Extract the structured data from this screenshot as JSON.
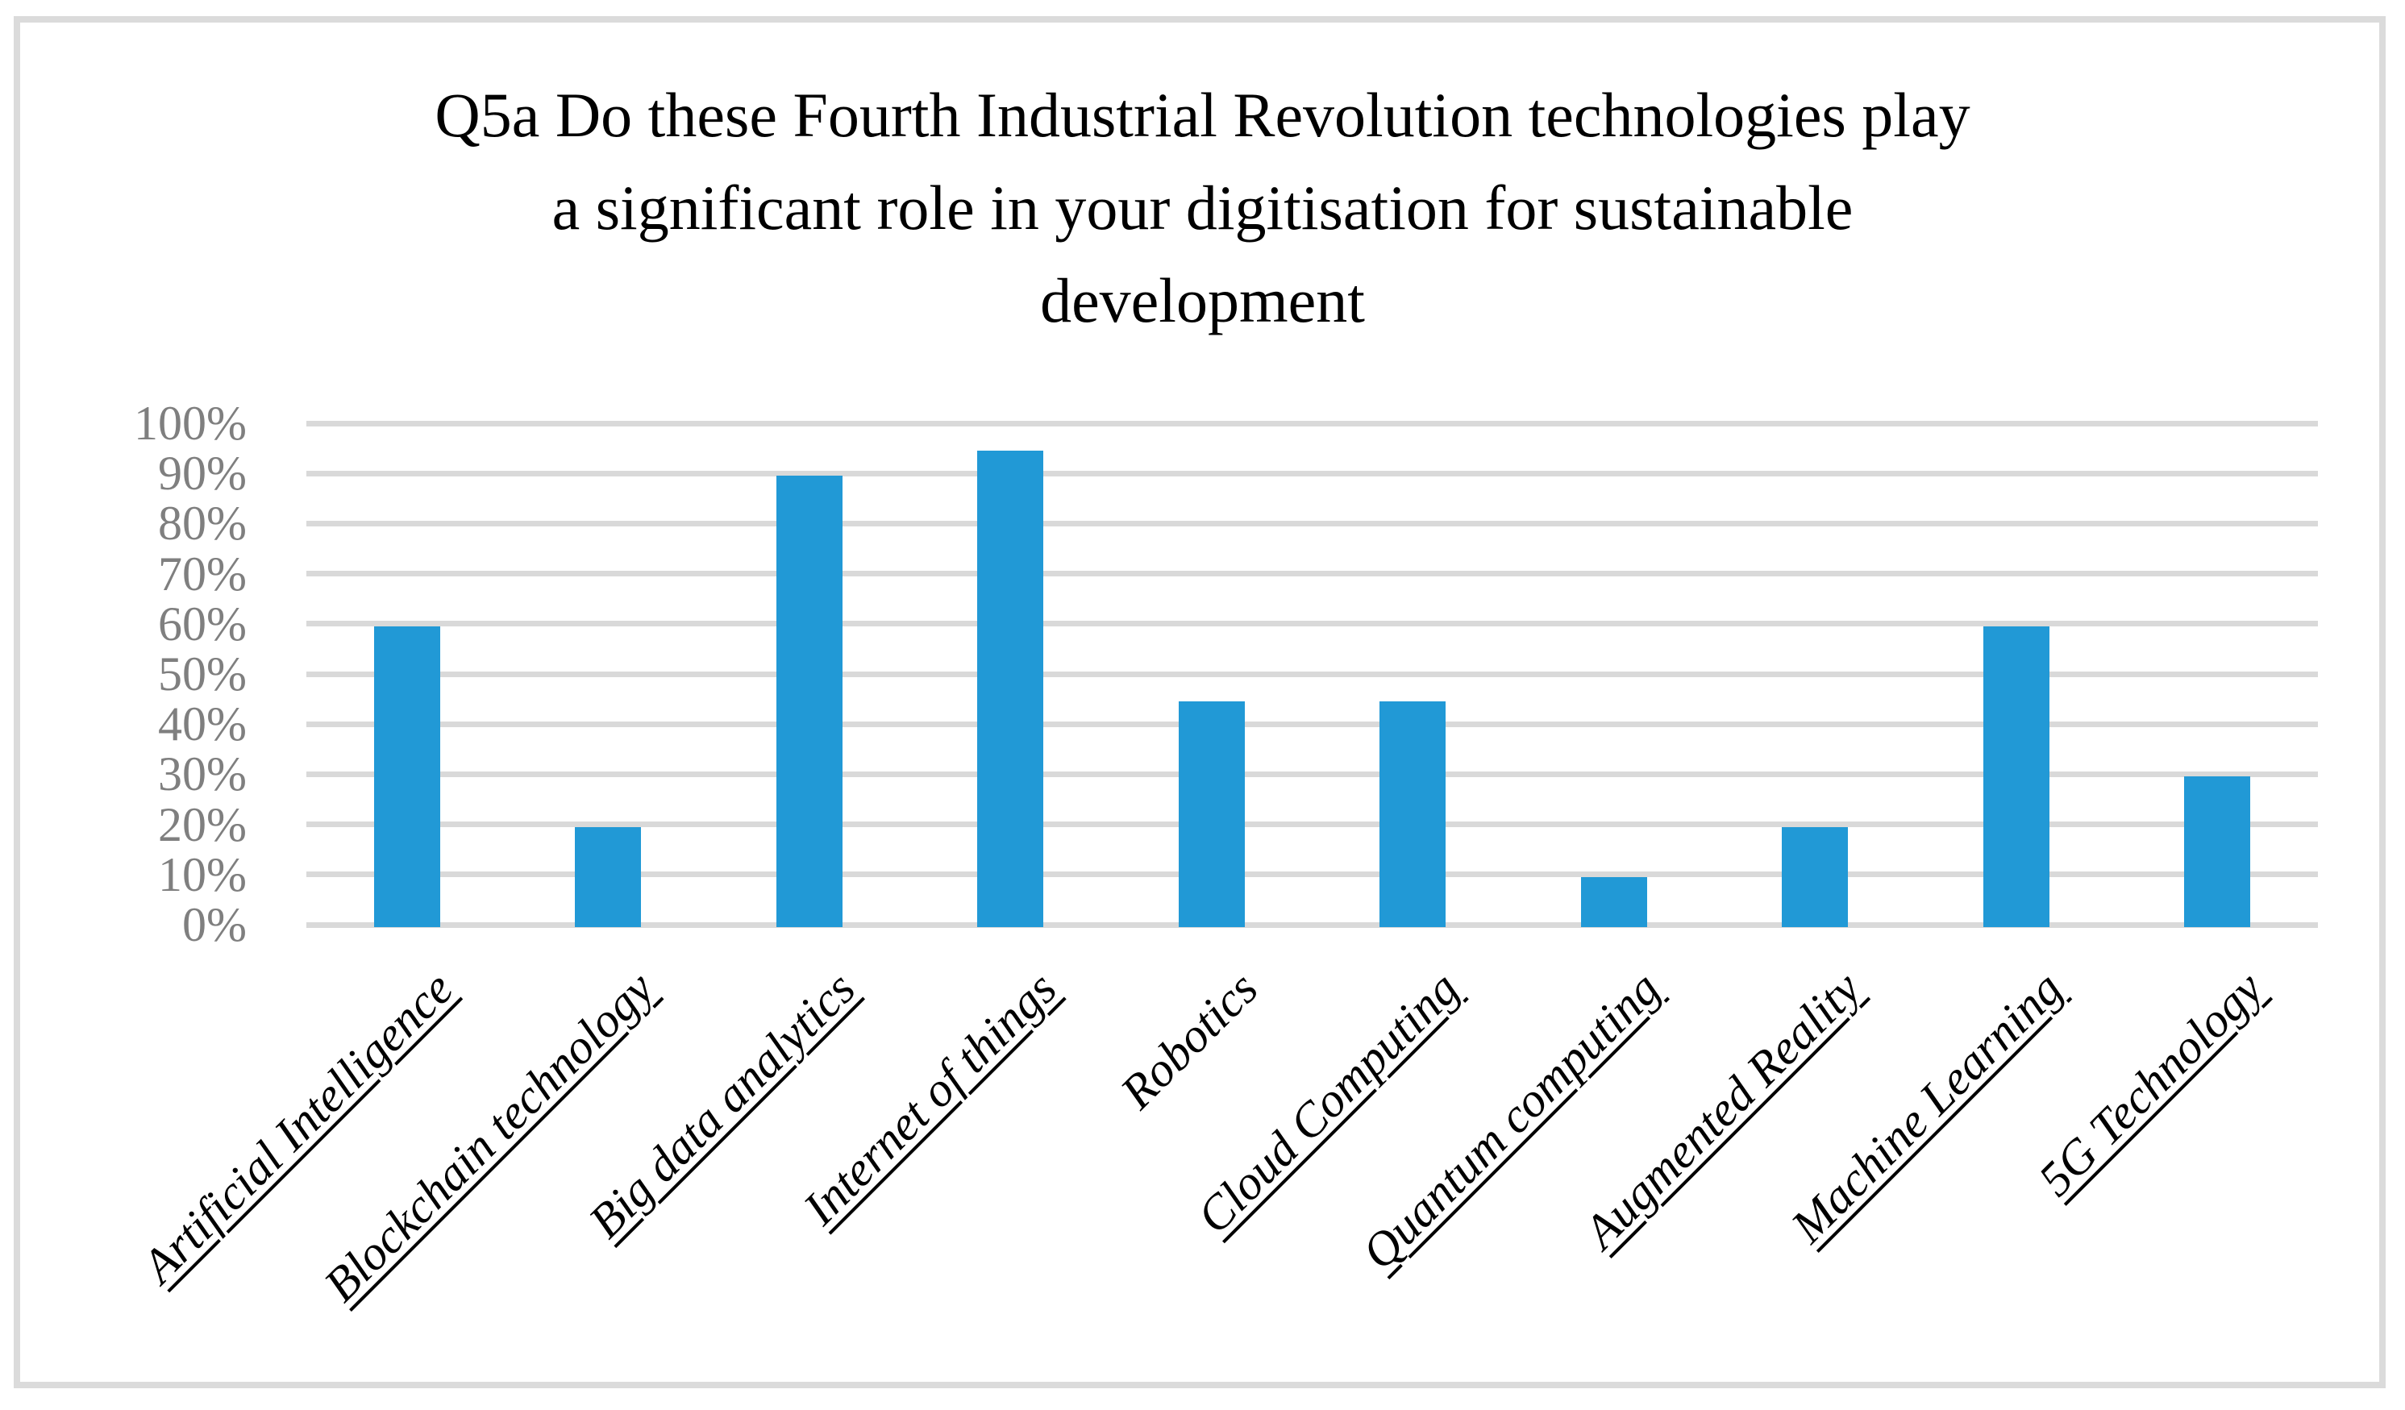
{
  "chart_data": {
    "type": "bar",
    "title": "Q5a Do these Fourth Industrial Revolution technologies play a significant role in your digitisation for sustainable development",
    "title_lines": [
      "Q5a Do these Fourth Industrial Revolution technologies play",
      "a significant role in your digitisation for sustainable",
      "development"
    ],
    "categories": [
      "Artificial Intelligence",
      "Blockchain technology",
      "Big data analytics",
      "Internet of things",
      "Robotics",
      "Cloud Computing",
      "Quantum computing",
      "Augmented Reality",
      "Machine Learning",
      "5G Technology"
    ],
    "values": [
      60,
      20,
      90,
      95,
      45,
      45,
      10,
      20,
      60,
      30
    ],
    "category_label_underlined": [
      true,
      true,
      true,
      true,
      false,
      true,
      true,
      true,
      true,
      true
    ],
    "xlabel": "",
    "ylabel": "",
    "ylim": [
      0,
      100
    ],
    "ytick_step": 10,
    "ytick_labels": [
      "0%",
      "10%",
      "20%",
      "30%",
      "40%",
      "50%",
      "60%",
      "70%",
      "80%",
      "90%",
      "100%"
    ],
    "grid": true,
    "legend_position": "none",
    "colors": {
      "bar": "#2199D6",
      "gridline": "#D9D9D9",
      "tick_label": "#7F7F7F",
      "category_label": "#000000",
      "title_text": "#000000",
      "frame_border": "#DBDBDB",
      "background": "#FFFFFF"
    }
  }
}
